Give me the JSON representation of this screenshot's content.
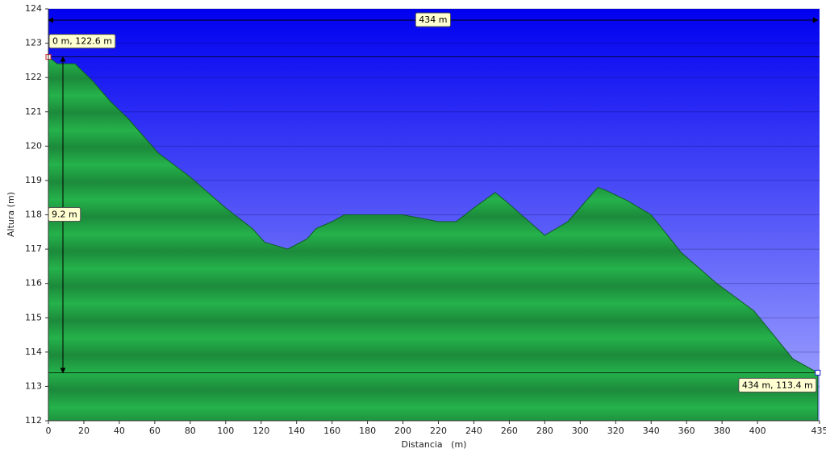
{
  "chart_data": {
    "type": "area",
    "x_label": "Distancia   (m)",
    "y_label": "Altura (m)",
    "x": [
      0,
      5,
      15,
      25,
      35,
      45,
      62,
      80,
      100,
      115,
      122,
      135,
      146,
      151,
      160,
      167,
      200,
      220,
      230,
      240,
      252,
      258,
      280,
      293,
      310,
      315,
      327,
      340,
      357,
      377,
      398,
      420,
      434
    ],
    "values": [
      122.6,
      122.4,
      122.4,
      121.9,
      121.3,
      120.8,
      119.8,
      119.1,
      118.2,
      117.6,
      117.2,
      117.0,
      117.3,
      117.6,
      117.8,
      118.0,
      118.0,
      117.8,
      117.8,
      118.2,
      118.65,
      118.4,
      117.4,
      117.8,
      118.8,
      118.7,
      118.4,
      118.0,
      116.9,
      116.0,
      115.2,
      113.8,
      113.4
    ],
    "xlim": [
      0,
      435
    ],
    "ylim": [
      112,
      124
    ],
    "xticks": [
      0,
      20,
      40,
      60,
      80,
      100,
      120,
      140,
      160,
      180,
      200,
      220,
      240,
      260,
      280,
      300,
      320,
      340,
      360,
      380,
      400,
      435
    ],
    "yticks": [
      112,
      113,
      114,
      115,
      116,
      117,
      118,
      119,
      120,
      121,
      122,
      123,
      124
    ],
    "grid": true,
    "annotations": {
      "distance": "434 m",
      "start": "0 m, 122.6 m",
      "climb": "9.2 m",
      "end": "434 m, 113.4 m"
    }
  }
}
